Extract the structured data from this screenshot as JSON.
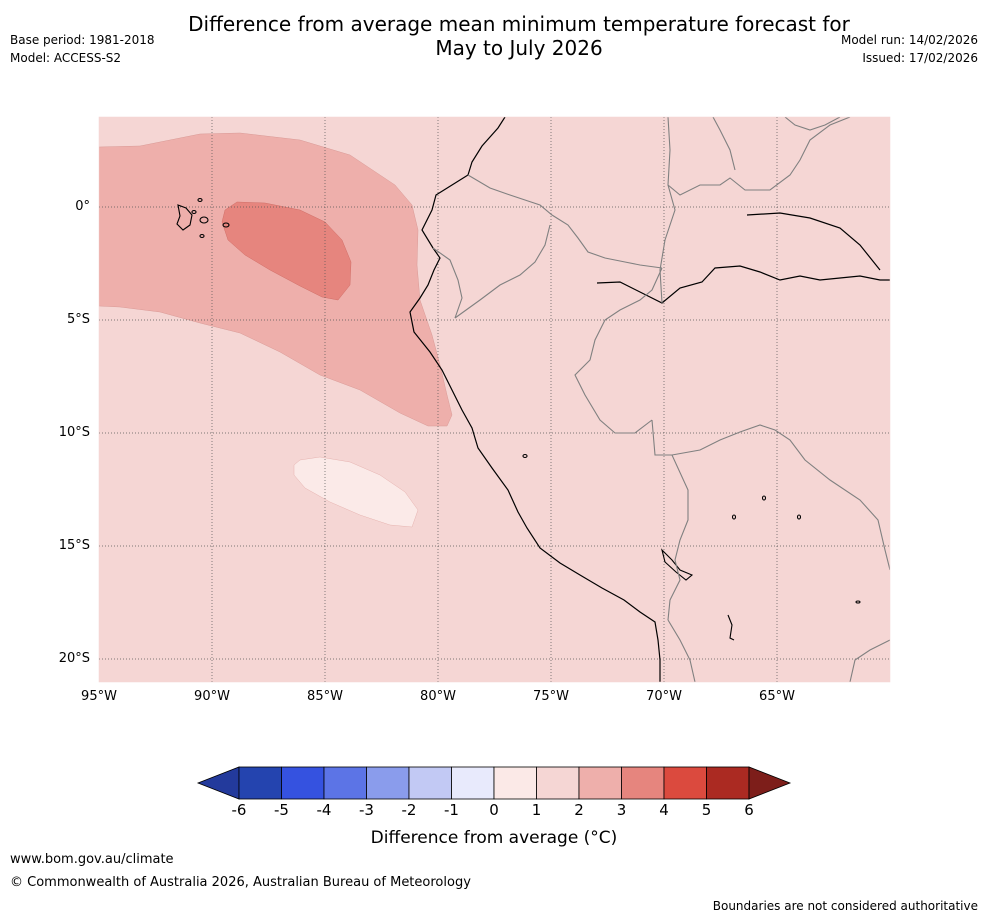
{
  "title_line1": "Difference from average mean minimum temperature forecast for",
  "title_line2": "May to July 2026",
  "meta": {
    "base_period": "Base period: 1981-2018",
    "model": "Model: ACCESS-S2",
    "model_run": "Model run: 14/02/2026",
    "issued": "Issued: 17/02/2026"
  },
  "map": {
    "lat_labels": [
      "0°",
      "5°S",
      "10°S",
      "15°S",
      "20°S"
    ],
    "lon_labels": [
      "95°W",
      "90°W",
      "85°W",
      "80°W",
      "75°W",
      "70°W",
      "65°W"
    ],
    "colors": {
      "background_anomaly_1_2": "#f5d6d4",
      "anomaly_2_3": "#eeafab",
      "anomaly_3_4": "#e6857e",
      "anomaly_0_1": "#fbeae8",
      "coastline": "#000000",
      "border": "#808080"
    }
  },
  "colorbar": {
    "ticks": [
      "-6",
      "-5",
      "-4",
      "-3",
      "-2",
      "-1",
      "0",
      "1",
      "2",
      "3",
      "4",
      "5",
      "6"
    ],
    "colors": [
      "#233a9c",
      "#2444af",
      "#3552e0",
      "#5c74e6",
      "#8a9cec",
      "#c2c9f4",
      "#e8eafc",
      "#fbe9e7",
      "#f5d6d4",
      "#eeafab",
      "#e6857e",
      "#db4a3e",
      "#ab2a22",
      "#7d1e1a"
    ],
    "label": "Difference from average (°C)"
  },
  "footer": {
    "website": "www.bom.gov.au/climate",
    "copyright": "© Commonwealth of Australia 2026, Australian Bureau of Meteorology",
    "disclaimer": "Boundaries are not considered authoritative"
  }
}
